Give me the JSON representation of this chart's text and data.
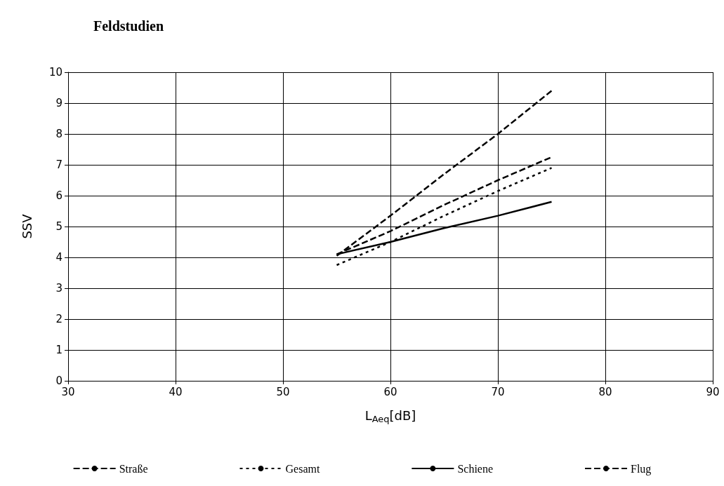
{
  "chart_data": {
    "type": "line",
    "title": "Feldstudien",
    "xlabel": "L$_{Aeq}$[dB]",
    "ylabel": "SSV",
    "x": [
      55,
      60,
      65,
      70,
      75
    ],
    "series": [
      {
        "name": "Straße",
        "color": "#000000",
        "line_style": "dashed",
        "values": [
          4.1,
          4.85,
          5.7,
          6.5,
          7.25
        ]
      },
      {
        "name": "Gesamt",
        "color": "#000000",
        "line_style": "dotted",
        "values": [
          3.75,
          4.5,
          5.35,
          6.15,
          6.9
        ]
      },
      {
        "name": "Schiene",
        "color": "#000000",
        "line_style": "solid",
        "values": [
          4.1,
          4.5,
          4.95,
          5.35,
          5.8
        ]
      },
      {
        "name": "Flug",
        "color": "#000000",
        "line_style": "dashed",
        "values": [
          4.05,
          5.35,
          6.7,
          8.0,
          9.4
        ]
      }
    ],
    "xlim": [
      30,
      90
    ],
    "xticks": [
      30,
      40,
      50,
      60,
      70,
      80,
      90
    ],
    "ylim": [
      0,
      10
    ],
    "yticks": [
      0,
      1,
      2,
      3,
      4,
      5,
      6,
      7,
      8,
      9,
      10
    ],
    "grid": true,
    "legend": "bottom",
    "marker": "none"
  }
}
